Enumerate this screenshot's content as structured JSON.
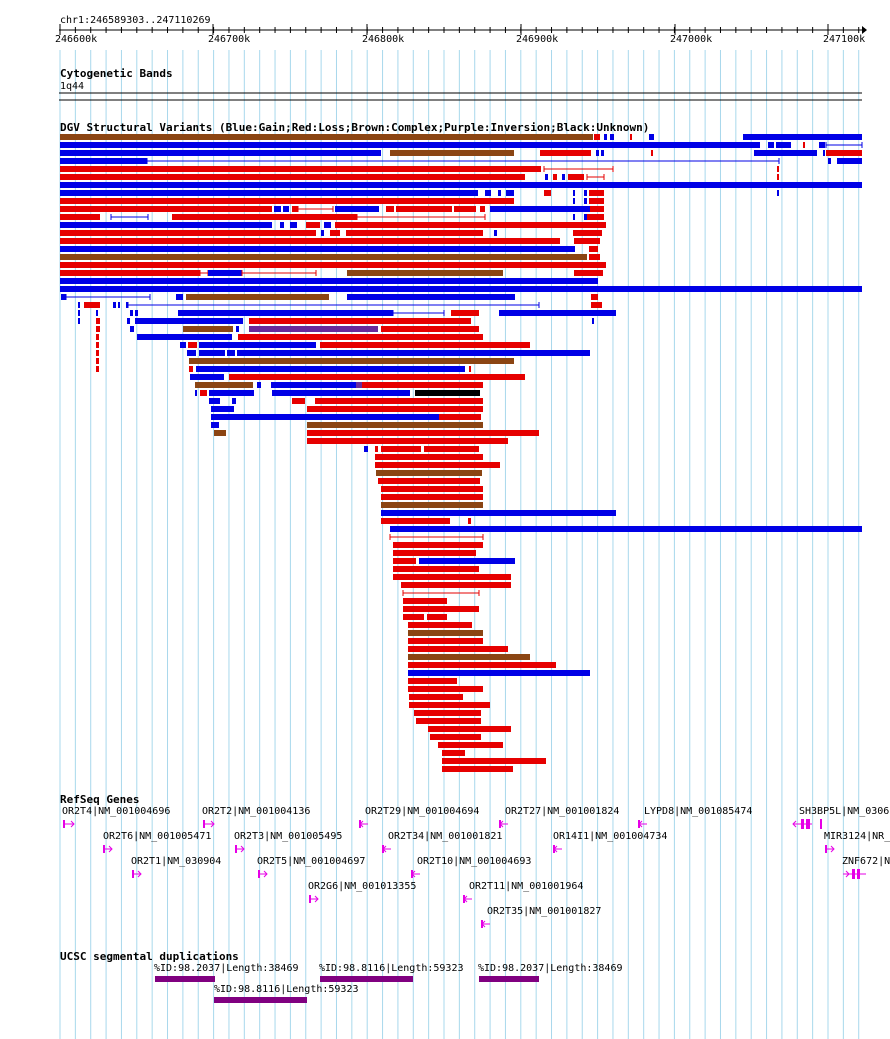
{
  "location": "chr1:246589303..247110269",
  "ruler": {
    "ticks": [
      {
        "label": "246600k",
        "pos": 246600000
      },
      {
        "label": "246700k",
        "pos": 246700000
      },
      {
        "label": "246800k",
        "pos": 246800000
      },
      {
        "label": "246900k",
        "pos": 246900000
      },
      {
        "label": "247000k",
        "pos": 247000000
      },
      {
        "label": "247100k",
        "pos": 247100000
      }
    ]
  },
  "cytoband": {
    "title": "Cytogenetic Bands",
    "band": "1q44"
  },
  "dgv": {
    "title": "DGV Structural Variants (Blue:Gain;Red:Loss;Brown:Complex;Purple:Inversion;Black:Unknown)",
    "colors": {
      "gain": "#0000e6",
      "loss": "#e60000",
      "complex": "#8b4513",
      "inversion": "#6a2a9a",
      "unknown": "#000000"
    }
  },
  "refseq": {
    "title": "RefSeq Genes",
    "color": "#e600e6",
    "genes": [
      {
        "label": "OR2T4|NM_001004696",
        "strand": "+"
      },
      {
        "label": "OR2T2|NM_001004136",
        "strand": "+"
      },
      {
        "label": "OR2T29|NM_001004694",
        "strand": "-"
      },
      {
        "label": "OR2T27|NM_001001824",
        "strand": "-"
      },
      {
        "label": "LYPD8|NM_001085474",
        "strand": "-"
      },
      {
        "label": "SH3BP5L|NM_0306",
        "strand": "-"
      },
      {
        "label": "OR2T6|NM_001005471",
        "strand": "+"
      },
      {
        "label": "OR2T3|NM_001005495",
        "strand": "+"
      },
      {
        "label": "OR2T34|NM_001001821",
        "strand": "-"
      },
      {
        "label": "OR14I1|NM_001004734",
        "strand": "-"
      },
      {
        "label": "MIR3124|NR_",
        "strand": "+"
      },
      {
        "label": "OR2T1|NM_030904",
        "strand": "+"
      },
      {
        "label": "OR2T5|NM_001004697",
        "strand": "+"
      },
      {
        "label": "OR2T10|NM_001004693",
        "strand": "-"
      },
      {
        "label": "ZNF672|N",
        "strand": "+"
      },
      {
        "label": "OR2G6|NM_001013355",
        "strand": "+"
      },
      {
        "label": "OR2T11|NM_001001964",
        "strand": "-"
      },
      {
        "label": "OR2T35|NM_001001827",
        "strand": "-"
      }
    ]
  },
  "segdup": {
    "title": "UCSC segmental duplications",
    "color": "#800080",
    "items": [
      {
        "label": "%ID:98.2037|Length:38469"
      },
      {
        "label": "%ID:98.8116|Length:59323"
      },
      {
        "label": "%ID:98.2037|Length:38469"
      },
      {
        "label": "%ID:98.8116|Length:59323"
      }
    ]
  }
}
